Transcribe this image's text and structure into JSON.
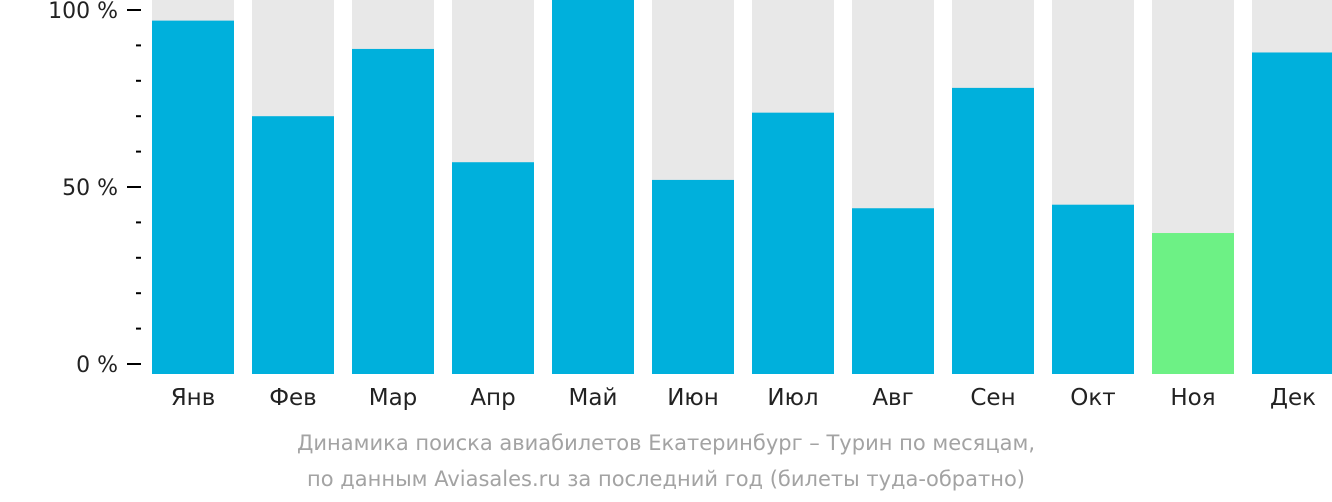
{
  "chart_data": {
    "type": "bar",
    "categories": [
      "Янв",
      "Фев",
      "Мар",
      "Апр",
      "Май",
      "Июн",
      "Июл",
      "Авг",
      "Сен",
      "Окт",
      "Ноя",
      "Дек"
    ],
    "values": [
      97,
      70,
      89,
      57,
      104,
      52,
      71,
      44,
      78,
      45,
      37,
      88
    ],
    "ylim": [
      0,
      105
    ],
    "yticks": [
      {
        "value": 0,
        "label": "0 %"
      },
      {
        "value": 50,
        "label": "50 %"
      },
      {
        "value": 100,
        "label": "100 %"
      }
    ],
    "minor_tick_step": 10,
    "highlight_index": 10,
    "colors": {
      "bar": "#00b0dc",
      "highlight": "#6df185",
      "background_bar": "#e8e8e8",
      "axis": "#000000"
    },
    "grid": false,
    "legend": "none"
  },
  "caption": {
    "line1": "Динамика поиска авиабилетов Екатеринбург – Турин по месяцам,",
    "line2": "по данным Aviasales.ru за последний год (билеты туда-обратно)"
  }
}
